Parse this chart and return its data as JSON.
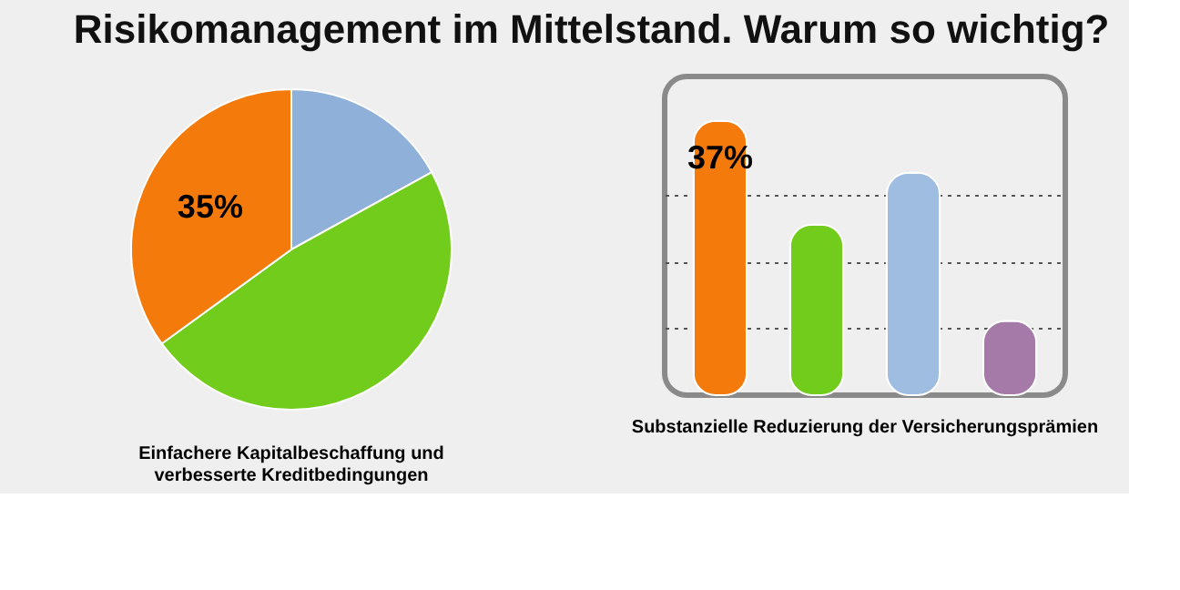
{
  "chart_data": [
    {
      "type": "pie",
      "title": "Risikomanagement im Mittelstand. Warum so wichtig?",
      "categories": [
        null,
        null,
        null
      ],
      "values": [
        17,
        48,
        35
      ],
      "colors": [
        "#8fb0d8",
        "#72cc1c",
        "#f47b0b"
      ],
      "value_labels": [
        null,
        null,
        "35%"
      ],
      "annotations": [
        "Einfachere Kapitalbeschaffung und\nverbesserte Kreditbedingungen"
      ]
    },
    {
      "type": "bar",
      "categories": [
        null,
        null,
        null,
        null
      ],
      "values": [
        37,
        23,
        30,
        10
      ],
      "colors": [
        "#f47b0b",
        "#72cc1c",
        "#9fbde0",
        "#a57aa8"
      ],
      "value_labels": [
        "37%",
        null,
        null,
        null
      ],
      "ylim": [
        0,
        43
      ],
      "yticks": [
        {
          "value": 9,
          "label": null
        },
        {
          "value": 18,
          "label": null
        },
        {
          "value": 27,
          "label": null
        }
      ],
      "grid": "y",
      "tick_labels": false,
      "annotations": [
        "Substanzielle Reduzierung der Versicherungsprämien"
      ]
    }
  ]
}
